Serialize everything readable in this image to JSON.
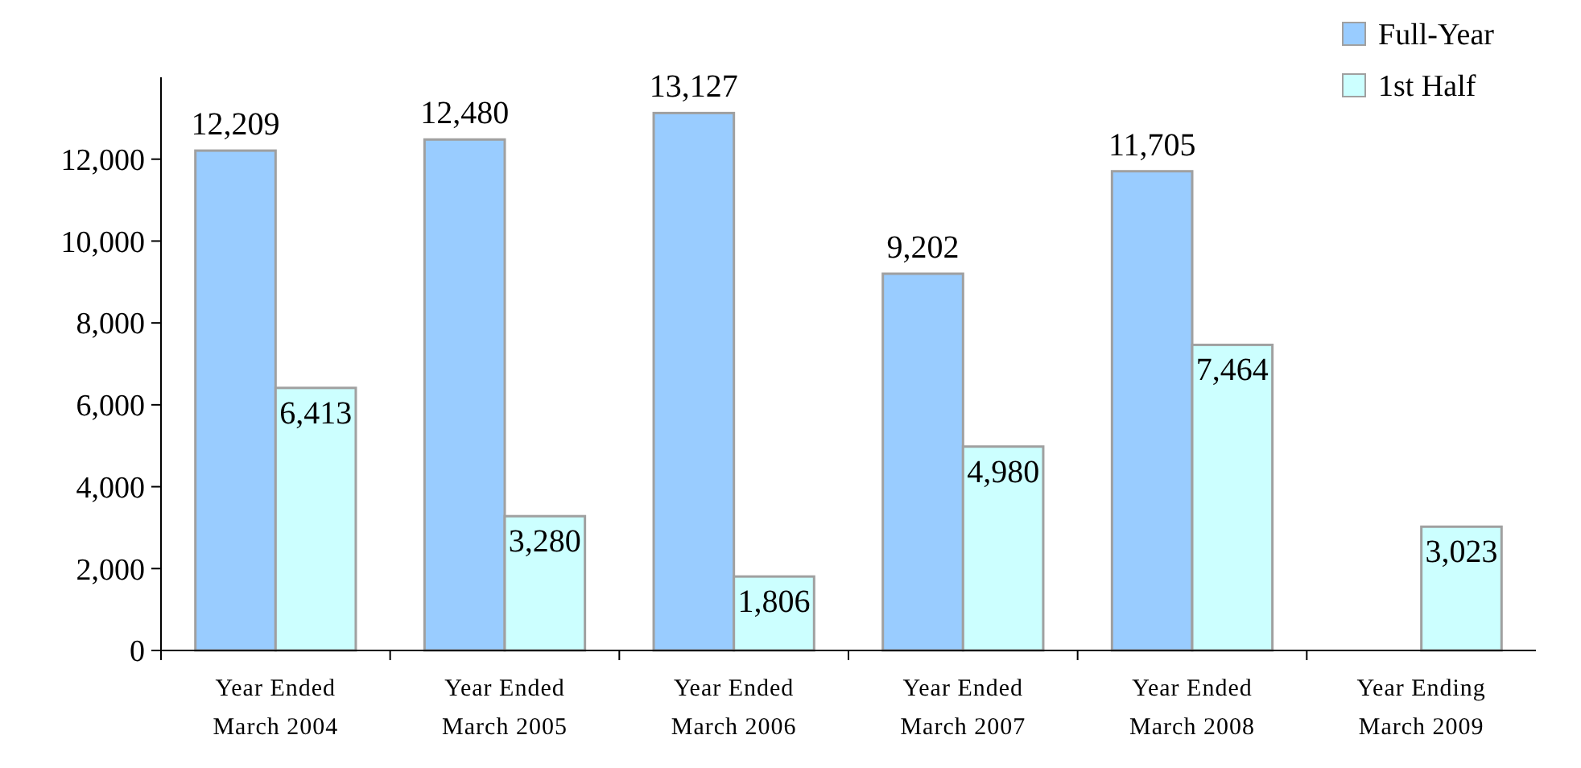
{
  "chart_data": {
    "type": "bar",
    "categories": [
      "Year Ended\nMarch 2004",
      "Year Ended\nMarch 2005",
      "Year Ended\nMarch 2006",
      "Year Ended\nMarch 2007",
      "Year Ended\nMarch 2008",
      "Year Ending\nMarch 2009"
    ],
    "series": [
      {
        "name": "Full-Year",
        "color": "#99ccff",
        "values": [
          12209,
          12480,
          13127,
          9202,
          11705,
          null
        ],
        "value_labels": [
          "12,209",
          "12,480",
          "13,127",
          "9,202",
          "11,705",
          null
        ]
      },
      {
        "name": "1st Half",
        "color": "#ccffff",
        "values": [
          6413,
          3280,
          1806,
          4980,
          7464,
          3023
        ],
        "value_labels": [
          "6,413",
          "3,280",
          "1,806",
          "4,980",
          "7,464",
          "3,023"
        ]
      }
    ],
    "ylim": [
      0,
      14000
    ],
    "yticks": [
      {
        "value": 0,
        "label": "0"
      },
      {
        "value": 2000,
        "label": "2,000"
      },
      {
        "value": 4000,
        "label": "4,000"
      },
      {
        "value": 6000,
        "label": "6,000"
      },
      {
        "value": 8000,
        "label": "8,000"
      },
      {
        "value": 10000,
        "label": "10,000"
      },
      {
        "value": 12000,
        "label": "12,000"
      }
    ],
    "legend": "top right",
    "grid": false
  }
}
